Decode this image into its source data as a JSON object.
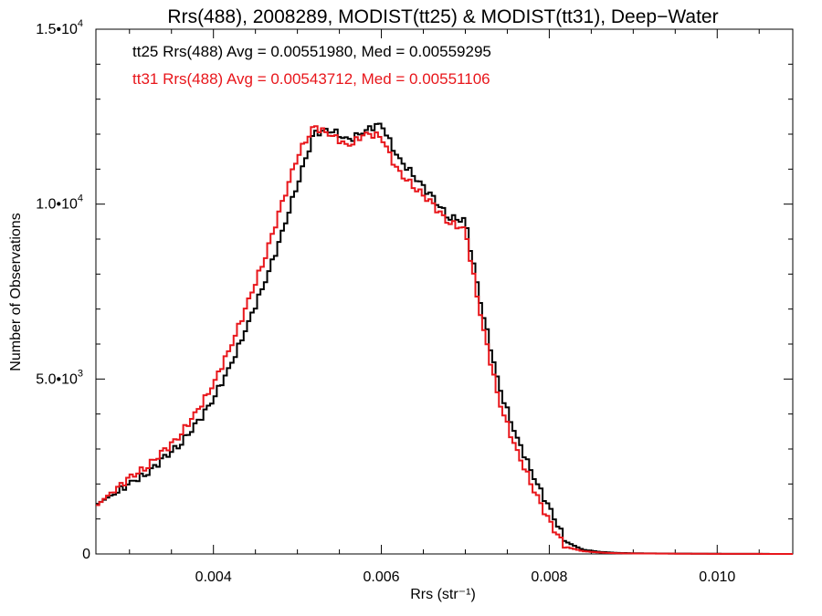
{
  "chart_data": {
    "type": "line",
    "title": "Rrs(488), 2008289, MODIST(tt25) & MODIST(tt31), Deep−Water",
    "xlabel": "Rrs (str⁻¹)",
    "ylabel": "Number of Observations",
    "xlim": [
      0.0026,
      0.0109
    ],
    "ylim": [
      0,
      15000
    ],
    "x_ticks": [
      {
        "value": 0.004,
        "label": "0.004"
      },
      {
        "value": 0.006,
        "label": "0.006"
      },
      {
        "value": 0.008,
        "label": "0.008"
      },
      {
        "value": 0.01,
        "label": "0.010"
      }
    ],
    "y_ticks": [
      {
        "value": 0,
        "label": "0"
      },
      {
        "value": 5000,
        "label": "5.0•10",
        "exp": "3"
      },
      {
        "value": 10000,
        "label": "1.0•10",
        "exp": "4"
      },
      {
        "value": 15000,
        "label": "1.5•10",
        "exp": "4"
      }
    ],
    "grid": false,
    "legend_position": "top-left",
    "series": [
      {
        "name": "tt25",
        "color": "#000000",
        "legend_text": "tt25 Rrs(488) Avg = 0.00551980, Med = 0.00559295",
        "x": [
          0.0026,
          0.0028,
          0.003,
          0.0032,
          0.0034,
          0.0036,
          0.0038,
          0.004,
          0.0042,
          0.0044,
          0.0046,
          0.0048,
          0.005,
          0.0052,
          0.0054,
          0.0056,
          0.0058,
          0.006,
          0.0062,
          0.0064,
          0.0066,
          0.0068,
          0.007,
          0.0072,
          0.0074,
          0.0076,
          0.0078,
          0.008,
          0.0082,
          0.0084,
          0.0086,
          0.0088,
          0.009,
          0.0095,
          0.01,
          0.0109
        ],
        "y": [
          1400,
          1700,
          2000,
          2300,
          2700,
          3150,
          3700,
          4450,
          5350,
          6500,
          7700,
          9000,
          10600,
          12000,
          12150,
          11800,
          12100,
          12300,
          11300,
          10800,
          10200,
          9650,
          9500,
          7000,
          4800,
          3400,
          2300,
          1300,
          350,
          120,
          60,
          30,
          20,
          10,
          5,
          0
        ]
      },
      {
        "name": "tt31",
        "color": "#e8161b",
        "legend_text": "tt31 Rrs(488) Avg = 0.00543712, Med = 0.00551106",
        "x": [
          0.0026,
          0.0028,
          0.003,
          0.0032,
          0.0034,
          0.0036,
          0.0038,
          0.004,
          0.0042,
          0.0044,
          0.0046,
          0.0048,
          0.005,
          0.0052,
          0.0054,
          0.0056,
          0.0058,
          0.006,
          0.0062,
          0.0064,
          0.0066,
          0.0068,
          0.007,
          0.0072,
          0.0074,
          0.0076,
          0.0078,
          0.008,
          0.0082,
          0.0084,
          0.0086,
          0.0088,
          0.009,
          0.0095,
          0.01,
          0.0109
        ],
        "y": [
          1350,
          1800,
          2150,
          2500,
          2900,
          3400,
          4050,
          4850,
          5900,
          7100,
          8400,
          9850,
          11400,
          12200,
          12000,
          11650,
          12000,
          11950,
          10900,
          10500,
          10000,
          9500,
          9250,
          6600,
          4400,
          3000,
          1950,
          900,
          200,
          80,
          40,
          20,
          15,
          8,
          4,
          0
        ]
      }
    ]
  }
}
